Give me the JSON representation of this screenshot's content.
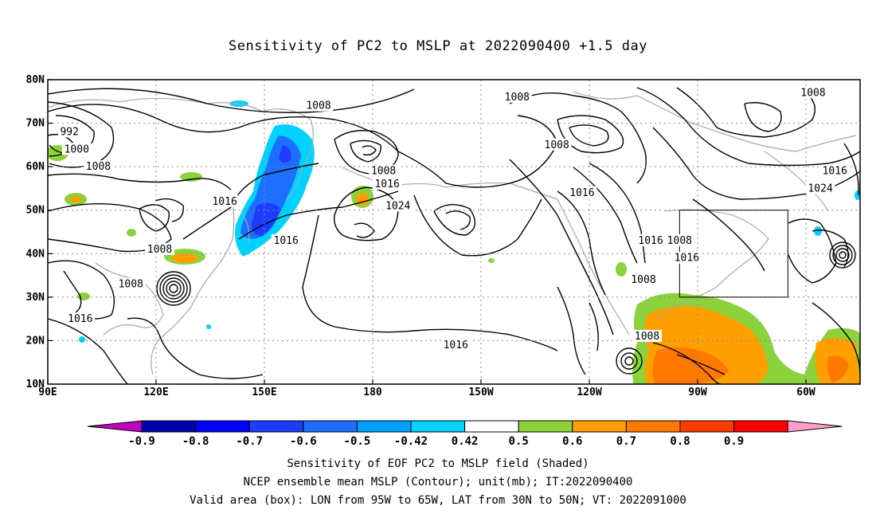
{
  "title": "Sensitivity of PC2 to MSLP at 2022090400 +1.5 day",
  "axes": {
    "lat_ticks": [
      "80N",
      "70N",
      "60N",
      "50N",
      "40N",
      "30N",
      "20N",
      "10N"
    ],
    "lon_ticks": [
      "90E",
      "120E",
      "150E",
      "180",
      "150W",
      "120W",
      "90W",
      "60W"
    ],
    "lon_range": [
      90,
      315
    ],
    "lat_range": [
      10,
      80
    ]
  },
  "colorbar": {
    "labels": [
      "-0.9",
      "-0.8",
      "-0.7",
      "-0.6",
      "-0.5",
      "-0.42",
      "0.42",
      "0.5",
      "0.6",
      "0.7",
      "0.8",
      "0.9"
    ],
    "colors": [
      "#c000c0",
      "#0000b0",
      "#0000ff",
      "#1e3cff",
      "#1e6eff",
      "#00a0ff",
      "#00d2ff",
      "#ffffff",
      "#8cd23c",
      "#ffa000",
      "#ff7800",
      "#ff3c00",
      "#ff0000",
      "#ffa0c8"
    ]
  },
  "contour_labels": [
    {
      "text": "992",
      "lon": 96,
      "lat": 68
    },
    {
      "text": "1000",
      "lon": 98,
      "lat": 64
    },
    {
      "text": "1008",
      "lon": 104,
      "lat": 60
    },
    {
      "text": "1008",
      "lon": 165,
      "lat": 74
    },
    {
      "text": "1016",
      "lon": 139,
      "lat": 52
    },
    {
      "text": "1008",
      "lon": 183,
      "lat": 59
    },
    {
      "text": "1016",
      "lon": 184,
      "lat": 56
    },
    {
      "text": "1024",
      "lon": 187,
      "lat": 51
    },
    {
      "text": "1016",
      "lon": 156,
      "lat": 43
    },
    {
      "text": "1008",
      "lon": 121,
      "lat": 41
    },
    {
      "text": "1008",
      "lon": 113,
      "lat": 33
    },
    {
      "text": "1016",
      "lon": 99,
      "lat": 25
    },
    {
      "text": "1016",
      "lon": 203,
      "lat": 19
    },
    {
      "text": "1008",
      "lon": 220,
      "lat": 76
    },
    {
      "text": "1008",
      "lon": 231,
      "lat": 65
    },
    {
      "text": "1016",
      "lon": 238,
      "lat": 54
    },
    {
      "text": "1016",
      "lon": 257,
      "lat": 43
    },
    {
      "text": "1008",
      "lon": 265,
      "lat": 43
    },
    {
      "text": "1016",
      "lon": 267,
      "lat": 39
    },
    {
      "text": "1008",
      "lon": 255,
      "lat": 34
    },
    {
      "text": "1008",
      "lon": 256,
      "lat": 21
    },
    {
      "text": "1008",
      "lon": 302,
      "lat": 77
    },
    {
      "text": "1016",
      "lon": 308,
      "lat": 59
    },
    {
      "text": "1024",
      "lon": 304,
      "lat": 55
    }
  ],
  "valid_box": {
    "lon_min": 265,
    "lon_max": 295,
    "lat_min": 30,
    "lat_max": 50
  },
  "captions": [
    "Sensitivity of EOF PC2 to MSLP field (Shaded)",
    "NCEP ensemble mean MSLP (Contour); unit(mb); IT:2022090400",
    "Valid area (box): LON from 95W to 65W, LAT from 30N to 50N; VT: 2022091000"
  ]
}
